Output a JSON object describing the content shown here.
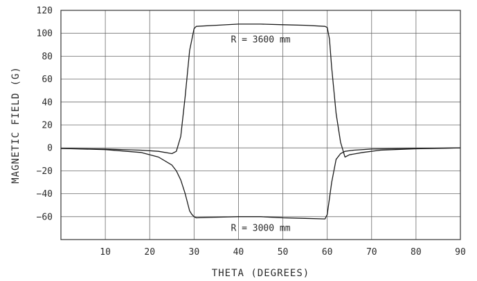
{
  "chart_data": {
    "type": "line",
    "title": "",
    "xlabel": "THETA (DEGREES)",
    "ylabel": "MAGNETIC FIELD (G)",
    "xlim": [
      0,
      90
    ],
    "ylim": [
      -80,
      120
    ],
    "x_ticks": [
      10,
      20,
      30,
      40,
      50,
      60,
      70,
      80,
      90
    ],
    "y_ticks": [
      120,
      100,
      80,
      60,
      40,
      20,
      0,
      -20,
      -40,
      -60
    ],
    "grid": true,
    "series": [
      {
        "annotation": "R = 3600 mm",
        "x": [
          0,
          10,
          18,
          22,
          25,
          26,
          27,
          28,
          29,
          30,
          30.5,
          35,
          40,
          45,
          50,
          55,
          59.5,
          60,
          60.5,
          61,
          62,
          63,
          64,
          65,
          68,
          72,
          80,
          90
        ],
        "y": [
          -0.5,
          -1,
          -2,
          -3,
          -5,
          -3,
          10,
          45,
          85,
          104,
          106,
          107,
          108,
          108,
          107.5,
          107,
          106,
          105,
          95,
          70,
          30,
          5,
          -8,
          -6,
          -4,
          -2,
          -0.8,
          0
        ]
      },
      {
        "annotation": "R = 3000 mm",
        "x": [
          0,
          10,
          18,
          22,
          25,
          26,
          27,
          28,
          29,
          29.5,
          30,
          30.5,
          35,
          40,
          45,
          50,
          55,
          59.5,
          60,
          61,
          62,
          63,
          64,
          66,
          70,
          80,
          90
        ],
        "y": [
          -0.5,
          -1.5,
          -4,
          -8,
          -15,
          -20,
          -28,
          -40,
          -55,
          -58,
          -60,
          -61,
          -60.5,
          -60,
          -60,
          -61,
          -61.5,
          -62,
          -58,
          -30,
          -10,
          -5,
          -3,
          -2,
          -1,
          -0.5,
          0
        ]
      }
    ]
  }
}
